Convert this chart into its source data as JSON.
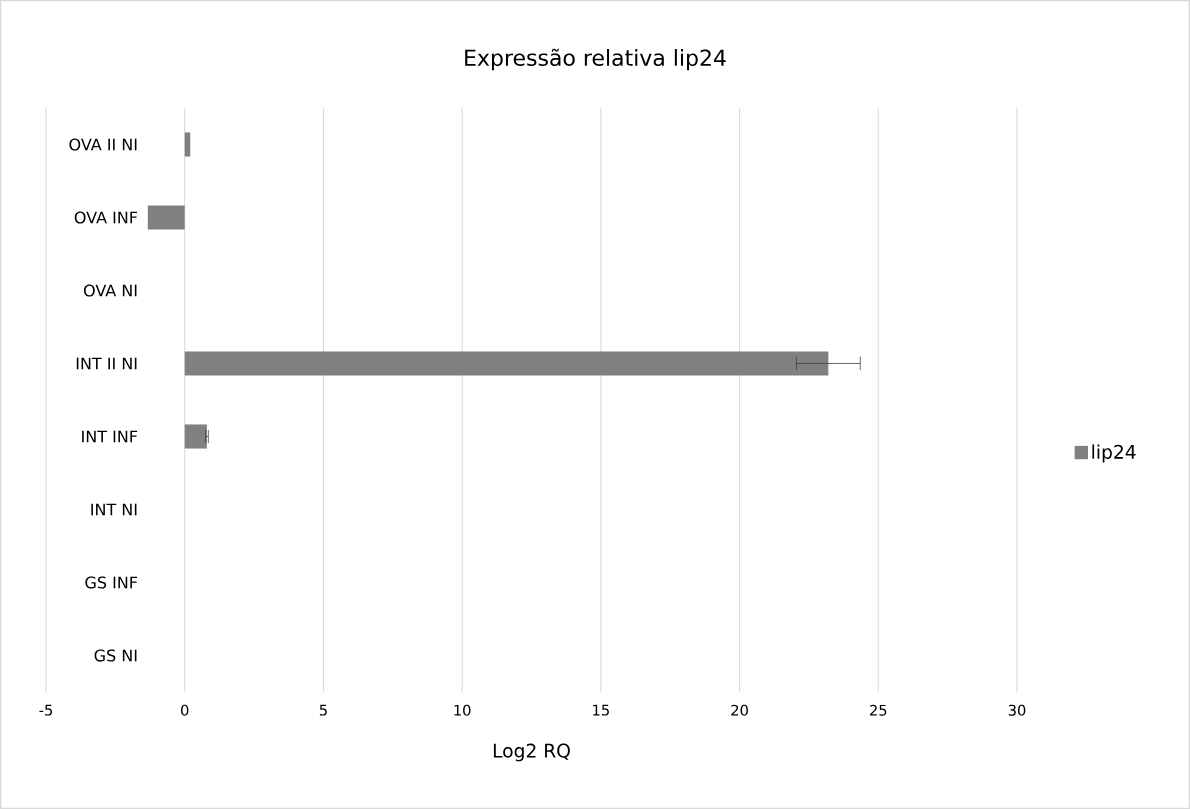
{
  "chart_data": {
    "type": "bar",
    "orientation": "horizontal",
    "title": "Expressão relativa lip24",
    "xlabel": "Log2 RQ",
    "categories": [
      "OVA II NI",
      "OVA INF",
      "OVA NI",
      "INT II NI",
      "INT INF",
      "INT NI",
      "GS INF",
      "GS NI"
    ],
    "series": [
      {
        "name": "lip24",
        "color": "#808080",
        "values": [
          0.2,
          -1.33,
          0,
          23.2,
          0.8,
          0,
          0,
          0
        ],
        "errors": [
          null,
          null,
          null,
          1.15,
          0.05,
          null,
          null,
          null
        ]
      }
    ],
    "xlim": [
      -5,
      30
    ],
    "xticks": [
      -5,
      0,
      5,
      10,
      15,
      20,
      25,
      30
    ],
    "grid": "x",
    "legend": "right"
  }
}
